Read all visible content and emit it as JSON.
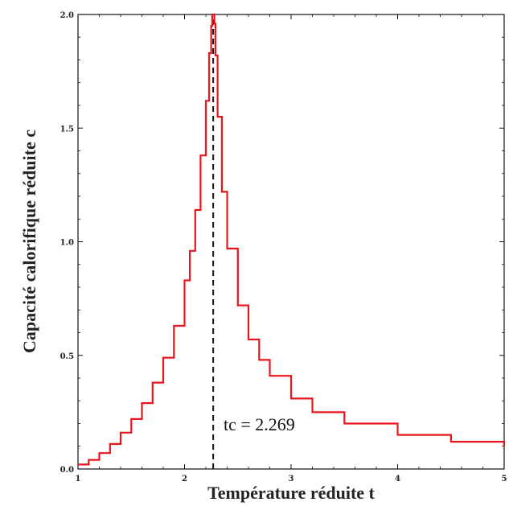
{
  "chart_data": {
    "type": "line",
    "title": "",
    "xlabel": "Température réduite t",
    "ylabel": "Capacité calorifique réduite c",
    "xlim": [
      1,
      5
    ],
    "ylim": [
      0,
      2.0
    ],
    "x_ticks": [
      "1",
      "2",
      "3",
      "4",
      "5"
    ],
    "y_ticks": [
      "0.0",
      "0.5",
      "1.0",
      "1.5",
      "2.0"
    ],
    "grid": false,
    "legend": "none",
    "series_color": "#e8151b",
    "critical_line_color": "#111111",
    "annotation": "tc = 2.269",
    "critical_t": 2.269,
    "series": [
      {
        "x": [
          1.0,
          1.1,
          1.2,
          1.3,
          1.4,
          1.5,
          1.6,
          1.7,
          1.8,
          1.9,
          2.0,
          2.05,
          2.1,
          2.15,
          2.2,
          2.23,
          2.25,
          2.26,
          2.27,
          2.28,
          2.29,
          2.31,
          2.35,
          2.4,
          2.5,
          2.6,
          2.7,
          2.8,
          3.0,
          3.2,
          3.5,
          4.0,
          4.5,
          5.0
        ],
        "y": [
          0.02,
          0.04,
          0.07,
          0.11,
          0.16,
          0.22,
          0.29,
          0.38,
          0.49,
          0.63,
          0.83,
          0.96,
          1.14,
          1.38,
          1.62,
          1.83,
          1.95,
          2.0,
          2.0,
          1.96,
          1.82,
          1.55,
          1.22,
          0.97,
          0.72,
          0.57,
          0.48,
          0.41,
          0.31,
          0.25,
          0.2,
          0.15,
          0.12,
          0.1
        ]
      }
    ]
  }
}
